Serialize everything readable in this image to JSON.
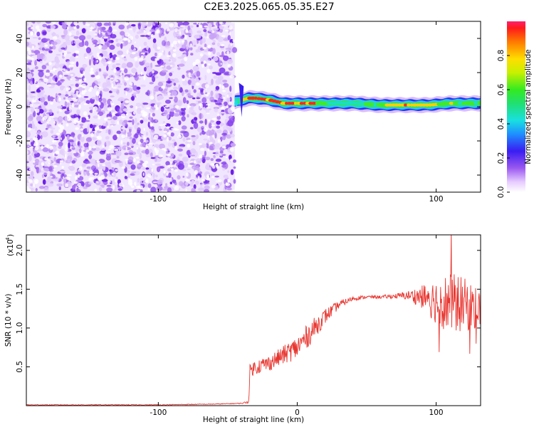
{
  "figure": {
    "title": "C2E3.2025.065.05.35.E27"
  },
  "chart_data": [
    {
      "type": "heatmap",
      "xlabel": "Height of straight line (km)",
      "ylabel": "Frequency (Hz)",
      "xlim": [
        -195,
        132
      ],
      "ylim": [
        -50,
        50
      ],
      "xticks": [
        -100,
        0,
        100
      ],
      "xtick_labels": [
        "-100",
        "",
        "100"
      ],
      "yticks": [
        -40,
        -20,
        0,
        20,
        40
      ],
      "ytick_labels": [
        "-40",
        "-20",
        "0",
        "20",
        "40"
      ],
      "colorbar": {
        "label": "Normalized spectral amplitude",
        "range": [
          0,
          1
        ],
        "ticks": [
          0,
          0.2,
          0.4,
          0.6,
          0.8
        ],
        "tick_labels": [
          "0.0",
          "0.2",
          "0.4",
          "0.6",
          "0.8"
        ]
      },
      "noise_region_x": [
        -195,
        -45
      ],
      "signal_band": {
        "x": [
          -45,
          -40,
          -35,
          -30,
          -20,
          -10,
          0,
          10,
          20,
          40,
          60,
          80,
          95,
          110,
          125,
          132
        ],
        "center_hz": [
          3,
          4,
          5,
          5,
          4,
          2,
          2,
          2,
          2,
          2,
          1,
          1,
          1,
          2,
          2,
          2
        ],
        "peak_amplitude": [
          0.4,
          0.7,
          0.9,
          0.95,
          0.9,
          0.9,
          0.85,
          0.9,
          0.6,
          0.5,
          0.7,
          0.9,
          0.8,
          0.7,
          0.6,
          0.6
        ]
      }
    },
    {
      "type": "line",
      "xlabel": "Height of straight line (km)",
      "ylabel": "SNR (10 * v/v)",
      "scale_label": "(x10",
      "scale_exponent": "4",
      "xlim": [
        -195,
        132
      ],
      "ylim": [
        0,
        2.2
      ],
      "xticks": [
        -100,
        0,
        100
      ],
      "xtick_labels": [
        "-100",
        "0",
        "100"
      ],
      "yticks": [
        0.5,
        1.0,
        1.5,
        2.0
      ],
      "ytick_labels": [
        "0.5",
        "1.0",
        "1.5",
        "2.0"
      ],
      "color": "#e8352f",
      "series": [
        {
          "x": [
            -195,
            -150,
            -100,
            -60,
            -40,
            -35,
            -34,
            -30,
            -20,
            -10,
            0,
            10,
            20,
            30,
            40,
            50,
            60,
            70,
            80,
            90,
            100,
            110,
            120,
            132
          ],
          "y": [
            0.01,
            0.01,
            0.01,
            0.02,
            0.03,
            0.05,
            0.45,
            0.5,
            0.55,
            0.65,
            0.75,
            0.95,
            1.15,
            1.3,
            1.38,
            1.4,
            1.4,
            1.41,
            1.42,
            1.4,
            1.35,
            1.32,
            1.3,
            1.25
          ],
          "noise_amplitude": [
            0.005,
            0.005,
            0.005,
            0.005,
            0.005,
            0.02,
            0.08,
            0.1,
            0.1,
            0.12,
            0.15,
            0.15,
            0.1,
            0.05,
            0.03,
            0.02,
            0.02,
            0.03,
            0.06,
            0.15,
            0.3,
            0.4,
            0.35,
            0.25
          ]
        }
      ]
    }
  ]
}
